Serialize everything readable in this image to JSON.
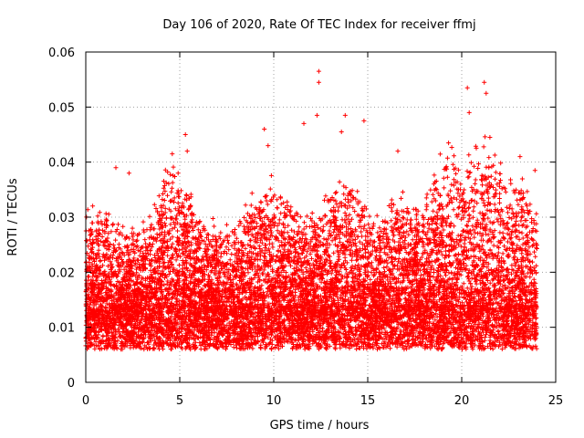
{
  "chart_data": {
    "type": "scatter",
    "title": "Day 106 of 2020, Rate Of TEC Index for receiver ffmj",
    "xlabel": "GPS time / hours",
    "ylabel": "ROTI / TECUs",
    "xlim": [
      0,
      25
    ],
    "ylim": [
      0,
      0.06
    ],
    "x_ticks": [
      0,
      5,
      10,
      15,
      20,
      25
    ],
    "x_tick_labels": [
      "0",
      "5",
      "10",
      "15",
      "20",
      "25"
    ],
    "y_ticks": [
      0,
      0.01,
      0.02,
      0.03,
      0.04,
      0.05,
      0.06
    ],
    "y_tick_labels": [
      "0",
      "0.01",
      "0.02",
      "0.03",
      "0.04",
      "0.05",
      "0.06"
    ],
    "grid": true,
    "marker": "+",
    "series": [
      {
        "name": "ROTI",
        "color": "#ff0000",
        "x_range": [
          0,
          24
        ],
        "typical_range": [
          0.004,
          0.025
        ],
        "outliers": [
          {
            "x": 1.6,
            "y": 0.039
          },
          {
            "x": 2.3,
            "y": 0.038
          },
          {
            "x": 4.6,
            "y": 0.0415
          },
          {
            "x": 5.3,
            "y": 0.045
          },
          {
            "x": 5.4,
            "y": 0.042
          },
          {
            "x": 9.5,
            "y": 0.046
          },
          {
            "x": 9.7,
            "y": 0.043
          },
          {
            "x": 11.6,
            "y": 0.047
          },
          {
            "x": 12.3,
            "y": 0.0485
          },
          {
            "x": 12.4,
            "y": 0.0565
          },
          {
            "x": 12.4,
            "y": 0.0545
          },
          {
            "x": 13.6,
            "y": 0.0455
          },
          {
            "x": 13.8,
            "y": 0.0485
          },
          {
            "x": 14.8,
            "y": 0.0475
          },
          {
            "x": 16.6,
            "y": 0.042
          },
          {
            "x": 19.3,
            "y": 0.0435
          },
          {
            "x": 20.3,
            "y": 0.0535
          },
          {
            "x": 20.4,
            "y": 0.049
          },
          {
            "x": 21.2,
            "y": 0.0545
          },
          {
            "x": 21.3,
            "y": 0.0525
          },
          {
            "x": 21.5,
            "y": 0.0445
          },
          {
            "x": 23.1,
            "y": 0.041
          },
          {
            "x": 23.9,
            "y": 0.0385
          }
        ]
      }
    ]
  }
}
